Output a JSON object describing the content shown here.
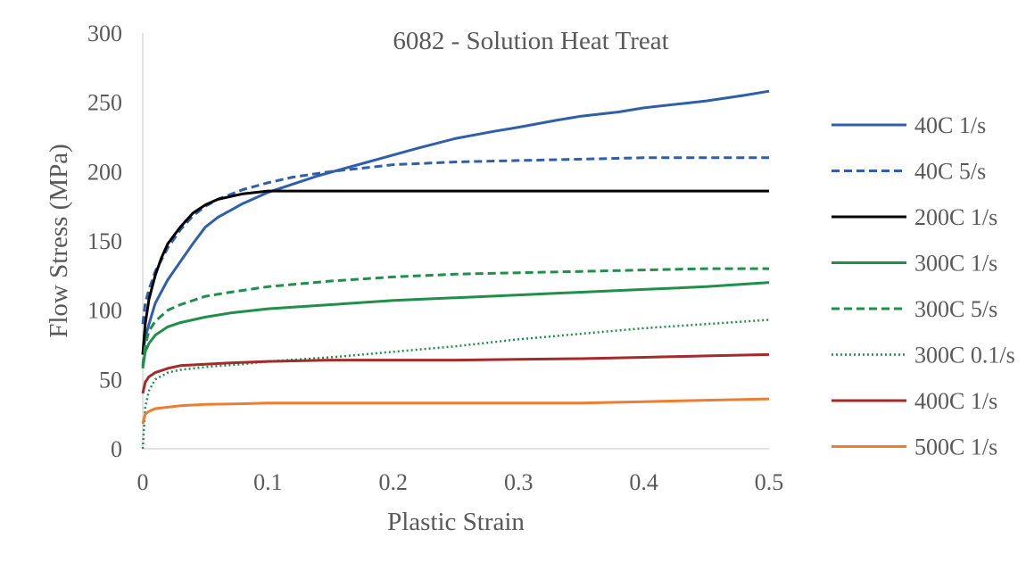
{
  "chart_data": {
    "type": "line",
    "title": "6082 - Solution Heat Treat",
    "xlabel": "Plastic Strain",
    "ylabel": "Flow Stress (MPa)",
    "xlim": [
      0,
      0.5
    ],
    "ylim": [
      0,
      300
    ],
    "x_ticks": [
      "0",
      "0.1",
      "0.2",
      "0.3",
      "0.4",
      "0.5"
    ],
    "y_ticks": [
      "0",
      "50",
      "100",
      "150",
      "200",
      "250",
      "300"
    ],
    "grid": false,
    "legend_position": "right",
    "series": [
      {
        "name": "40C 1/s",
        "color": "#2E5FA8",
        "dash": "solid",
        "points": [
          [
            0,
            68
          ],
          [
            0.002,
            80
          ],
          [
            0.005,
            90
          ],
          [
            0.01,
            105
          ],
          [
            0.02,
            122
          ],
          [
            0.03,
            135
          ],
          [
            0.04,
            148
          ],
          [
            0.05,
            160
          ],
          [
            0.06,
            167
          ],
          [
            0.08,
            177
          ],
          [
            0.1,
            185
          ],
          [
            0.12,
            191
          ],
          [
            0.14,
            197
          ],
          [
            0.16,
            202
          ],
          [
            0.18,
            207
          ],
          [
            0.2,
            212
          ],
          [
            0.22,
            217
          ],
          [
            0.25,
            224
          ],
          [
            0.28,
            229
          ],
          [
            0.3,
            232
          ],
          [
            0.33,
            237
          ],
          [
            0.35,
            240
          ],
          [
            0.38,
            243
          ],
          [
            0.4,
            246
          ],
          [
            0.43,
            249
          ],
          [
            0.45,
            251
          ],
          [
            0.48,
            255
          ],
          [
            0.5,
            258
          ]
        ]
      },
      {
        "name": "40C 5/s",
        "color": "#2E5FA8",
        "dash": "dashed",
        "points": [
          [
            0,
            90
          ],
          [
            0.002,
            105
          ],
          [
            0.005,
            115
          ],
          [
            0.01,
            128
          ],
          [
            0.02,
            145
          ],
          [
            0.03,
            158
          ],
          [
            0.04,
            168
          ],
          [
            0.05,
            175
          ],
          [
            0.06,
            180
          ],
          [
            0.08,
            187
          ],
          [
            0.1,
            192
          ],
          [
            0.12,
            196
          ],
          [
            0.15,
            200
          ],
          [
            0.18,
            203
          ],
          [
            0.2,
            205
          ],
          [
            0.25,
            207
          ],
          [
            0.3,
            208
          ],
          [
            0.35,
            209
          ],
          [
            0.4,
            210
          ],
          [
            0.45,
            210
          ],
          [
            0.5,
            210
          ]
        ]
      },
      {
        "name": "200C 1/s",
        "color": "#000000",
        "dash": "solid",
        "points": [
          [
            0,
            68
          ],
          [
            0.002,
            90
          ],
          [
            0.005,
            108
          ],
          [
            0.01,
            125
          ],
          [
            0.015,
            138
          ],
          [
            0.02,
            148
          ],
          [
            0.03,
            160
          ],
          [
            0.04,
            170
          ],
          [
            0.05,
            176
          ],
          [
            0.06,
            180
          ],
          [
            0.08,
            184
          ],
          [
            0.1,
            186
          ],
          [
            0.12,
            186
          ],
          [
            0.15,
            186
          ],
          [
            0.2,
            186
          ],
          [
            0.3,
            186
          ],
          [
            0.4,
            186
          ],
          [
            0.5,
            186
          ]
        ]
      },
      {
        "name": "300C 1/s",
        "color": "#1F8F4A",
        "dash": "solid",
        "points": [
          [
            0,
            58
          ],
          [
            0.002,
            70
          ],
          [
            0.005,
            76
          ],
          [
            0.01,
            82
          ],
          [
            0.02,
            88
          ],
          [
            0.03,
            91
          ],
          [
            0.05,
            95
          ],
          [
            0.07,
            98
          ],
          [
            0.1,
            101
          ],
          [
            0.15,
            104
          ],
          [
            0.2,
            107
          ],
          [
            0.25,
            109
          ],
          [
            0.3,
            111
          ],
          [
            0.35,
            113
          ],
          [
            0.4,
            115
          ],
          [
            0.45,
            117
          ],
          [
            0.5,
            120
          ]
        ]
      },
      {
        "name": "300C  5/s",
        "color": "#1F8F4A",
        "dash": "dashed",
        "points": [
          [
            0,
            60
          ],
          [
            0.002,
            75
          ],
          [
            0.005,
            85
          ],
          [
            0.01,
            92
          ],
          [
            0.02,
            100
          ],
          [
            0.03,
            104
          ],
          [
            0.05,
            110
          ],
          [
            0.07,
            113
          ],
          [
            0.1,
            117
          ],
          [
            0.15,
            121
          ],
          [
            0.2,
            124
          ],
          [
            0.25,
            126
          ],
          [
            0.3,
            127
          ],
          [
            0.35,
            128
          ],
          [
            0.4,
            129
          ],
          [
            0.45,
            130
          ],
          [
            0.5,
            130
          ]
        ]
      },
      {
        "name": "300C 0.1/s",
        "color": "#1F8F4A",
        "dash": "dotted",
        "points": [
          [
            0,
            0
          ],
          [
            0.002,
            30
          ],
          [
            0.005,
            42
          ],
          [
            0.01,
            50
          ],
          [
            0.02,
            55
          ],
          [
            0.03,
            57
          ],
          [
            0.05,
            59
          ],
          [
            0.08,
            61
          ],
          [
            0.1,
            63
          ],
          [
            0.15,
            66
          ],
          [
            0.2,
            70
          ],
          [
            0.25,
            74
          ],
          [
            0.3,
            79
          ],
          [
            0.35,
            83
          ],
          [
            0.4,
            87
          ],
          [
            0.45,
            90
          ],
          [
            0.5,
            93
          ]
        ]
      },
      {
        "name": "400C  1/s",
        "color": "#A52A2A",
        "dash": "solid",
        "points": [
          [
            0,
            40
          ],
          [
            0.002,
            48
          ],
          [
            0.005,
            52
          ],
          [
            0.01,
            55
          ],
          [
            0.02,
            58
          ],
          [
            0.03,
            60
          ],
          [
            0.05,
            61
          ],
          [
            0.07,
            62
          ],
          [
            0.1,
            63
          ],
          [
            0.15,
            64
          ],
          [
            0.2,
            64
          ],
          [
            0.25,
            64
          ],
          [
            0.3,
            64.5
          ],
          [
            0.35,
            65
          ],
          [
            0.4,
            66
          ],
          [
            0.45,
            67
          ],
          [
            0.5,
            68
          ]
        ]
      },
      {
        "name": "500C 1/s",
        "color": "#ED7D31",
        "dash": "solid",
        "points": [
          [
            0,
            18
          ],
          [
            0.002,
            25
          ],
          [
            0.005,
            27
          ],
          [
            0.01,
            29
          ],
          [
            0.02,
            30
          ],
          [
            0.03,
            31
          ],
          [
            0.05,
            32
          ],
          [
            0.08,
            32.5
          ],
          [
            0.1,
            33
          ],
          [
            0.15,
            33
          ],
          [
            0.2,
            33
          ],
          [
            0.25,
            33
          ],
          [
            0.3,
            33
          ],
          [
            0.35,
            33
          ],
          [
            0.4,
            34
          ],
          [
            0.45,
            35
          ],
          [
            0.5,
            36
          ]
        ]
      }
    ]
  }
}
